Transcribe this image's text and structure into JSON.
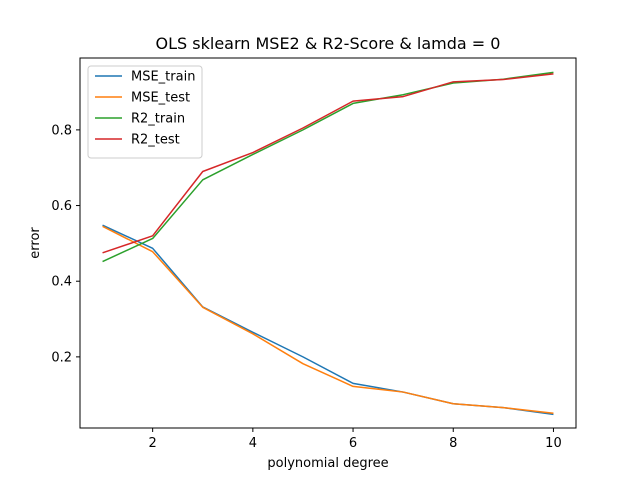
{
  "chart_data": {
    "type": "line",
    "title": "OLS sklearn MSE2 & R2-Score & lamda = 0",
    "xlabel": "polynomial degree",
    "ylabel": "error",
    "xlim": [
      0.55,
      10.45
    ],
    "ylim": [
      0.012,
      0.99
    ],
    "xticks": [
      2,
      4,
      6,
      8,
      10
    ],
    "yticks": [
      0.2,
      0.4,
      0.6,
      0.8
    ],
    "grid": false,
    "legend_position": "upper-left",
    "x": [
      1,
      2,
      3,
      4,
      5,
      6,
      7,
      8,
      9,
      10
    ],
    "series": [
      {
        "name": "MSE_train",
        "color": "#1f77b4",
        "values": [
          0.548,
          0.487,
          0.332,
          0.265,
          0.2,
          0.13,
          0.107,
          0.076,
          0.066,
          0.048
        ]
      },
      {
        "name": "MSE_test",
        "color": "#ff7f0e",
        "values": [
          0.545,
          0.478,
          0.331,
          0.261,
          0.182,
          0.122,
          0.107,
          0.076,
          0.066,
          0.051
        ]
      },
      {
        "name": "R2_train",
        "color": "#2ca02c",
        "values": [
          0.452,
          0.513,
          0.668,
          0.735,
          0.8,
          0.87,
          0.893,
          0.924,
          0.934,
          0.952
        ]
      },
      {
        "name": "R2_test",
        "color": "#d62728",
        "values": [
          0.475,
          0.52,
          0.69,
          0.74,
          0.805,
          0.876,
          0.888,
          0.927,
          0.933,
          0.948
        ]
      }
    ]
  }
}
